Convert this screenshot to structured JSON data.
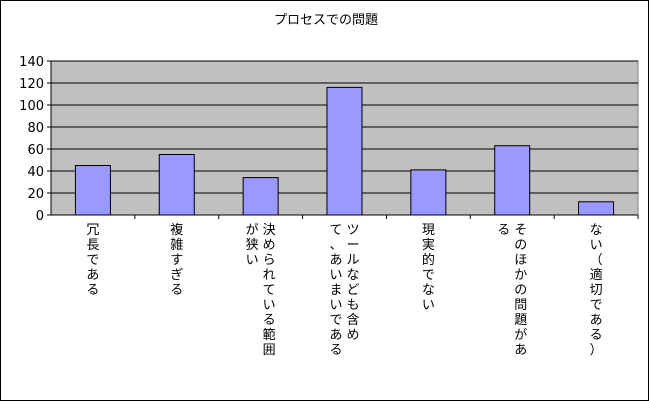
{
  "chart_data": {
    "type": "bar",
    "title": "プロセスでの問題",
    "xlabel": "",
    "ylabel": "",
    "ylim": [
      0,
      140
    ],
    "yticks": [
      0,
      20,
      40,
      60,
      80,
      100,
      120,
      140
    ],
    "grid": true,
    "legend": "none",
    "categories": [
      [
        "冗長である"
      ],
      [
        "複雑すぎる"
      ],
      [
        "決められている範囲",
        "が狭い"
      ],
      [
        "ツールなども含め",
        "て、あいまいである"
      ],
      [
        "現実的でない"
      ],
      [
        "そのほかの問題があ",
        "る"
      ],
      [
        "ない（適切である）"
      ]
    ],
    "values": [
      45,
      55,
      34,
      116,
      41,
      63,
      12
    ],
    "colors": {
      "plot_background": "#c0c0c0",
      "bar_fill": "#9999ff",
      "bar_stroke": "#000000",
      "gridline": "#000000"
    }
  }
}
